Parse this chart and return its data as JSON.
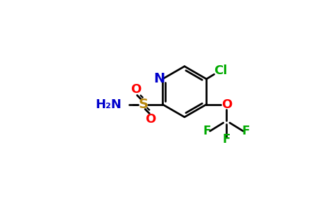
{
  "bg_color": "#ffffff",
  "bond_color": "#000000",
  "N_color": "#0000cc",
  "O_color": "#ff0000",
  "S_color": "#b8860b",
  "F_color": "#00aa00",
  "Cl_color": "#00aa00",
  "H2N_color": "#0000cc",
  "line_width": 2.0,
  "figsize": [
    4.84,
    3.0
  ],
  "dpi": 100,
  "xlim": [
    0,
    9.68
  ],
  "ylim": [
    0,
    6.0
  ]
}
